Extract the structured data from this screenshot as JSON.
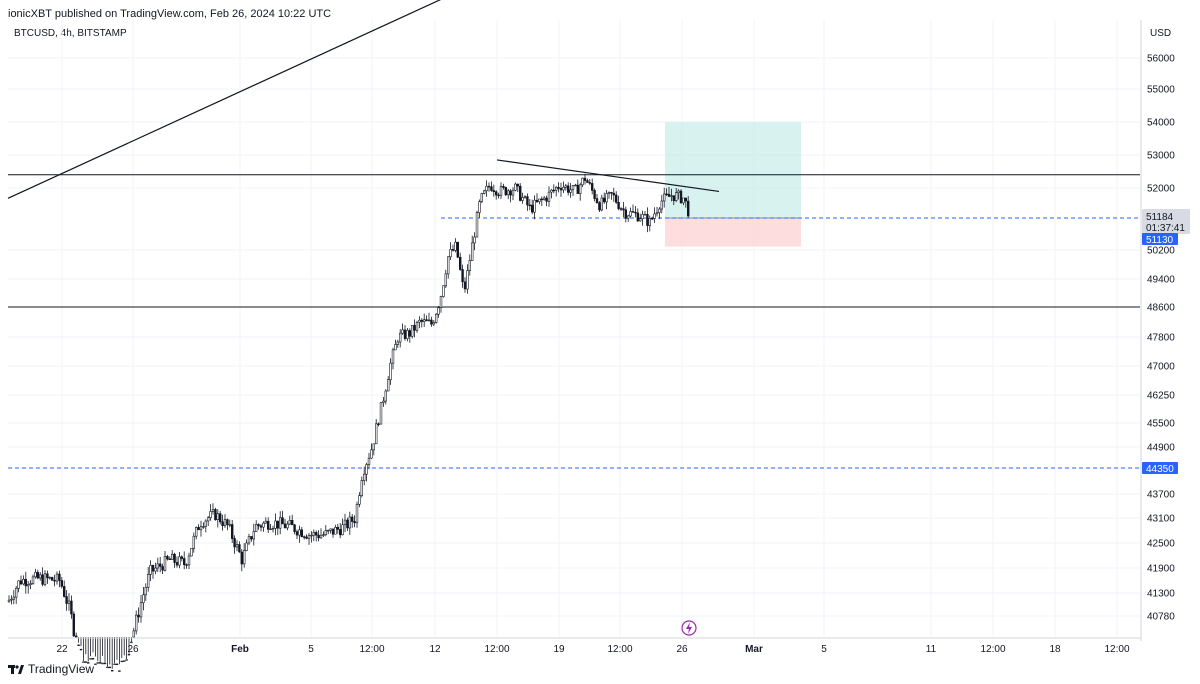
{
  "header": {
    "text": "ionicXBT published on TradingView.com, Feb 26, 2024 10:22 UTC"
  },
  "symbol": {
    "text": "BTCUSD, 4h, BITSTAMP"
  },
  "currency": "USD",
  "footer": {
    "brand": "TradingView"
  },
  "colors": {
    "grid": "#f0f3fa",
    "axis_line": "#d1d4dc",
    "candle": "#131722",
    "dashed": "#2962ff",
    "tp_zone": "#c8ece8",
    "sl_zone": "#fdd5d5",
    "label_blue": "#2962ff",
    "label_grey": "#d8dbe3",
    "bolt": "#9c27b0"
  },
  "chart_data": {
    "type": "candlestick",
    "price_scale_labels": [
      "56000",
      "55000",
      "54000",
      "53000",
      "52000",
      "51184",
      "01:37:41",
      "51130",
      "50200",
      "49400",
      "48600",
      "47800",
      "47000",
      "46250",
      "45500",
      "44900",
      "44350",
      "43700",
      "43100",
      "42500",
      "41900",
      "41300",
      "40780"
    ],
    "time_labels": [
      "22",
      "26",
      "Feb",
      "5",
      "12:00",
      "12",
      "12:00",
      "19",
      "12:00",
      "26",
      "Mar",
      "5",
      "11",
      "12:00",
      "18",
      "12:00"
    ],
    "bold_time_labels": [
      "Feb",
      "Mar"
    ],
    "current_price": {
      "value": 51184,
      "countdown": "01:37:41"
    },
    "entry_line": 51130,
    "support_line": 44350,
    "horizontal_lines": [
      52400,
      48600
    ],
    "position_zone": {
      "entry": 51130,
      "take_profit": 54000,
      "stop_loss": 50300
    },
    "trendlines": [
      {
        "from": [
          "Jan 19",
          51700
        ],
        "to": [
          "Feb 8",
          56550
        ]
      },
      {
        "from": [
          "Feb 13",
          52850
        ],
        "to": [
          "Feb 27",
          51900
        ]
      }
    ],
    "event_icon": "lightning-icon"
  }
}
